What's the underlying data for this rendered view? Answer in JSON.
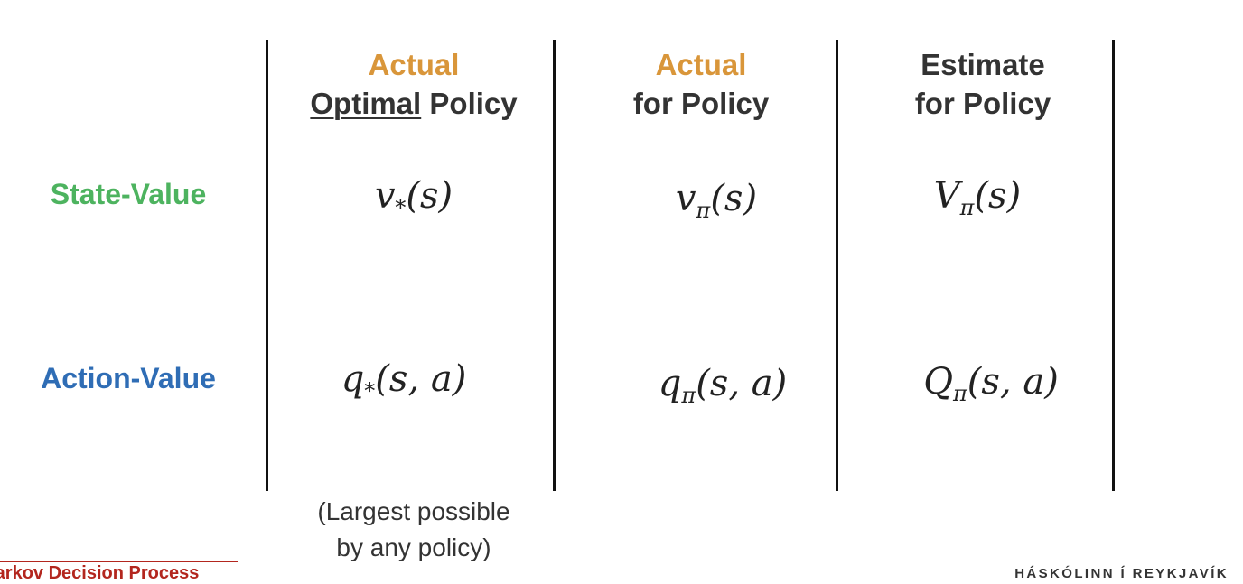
{
  "colors": {
    "accent_orange": "#D9963A",
    "state_green": "#4DB35F",
    "action_blue": "#2F6DB5",
    "footer_red": "#B3261E",
    "text": "#333333"
  },
  "columns": [
    {
      "line1": "Actual",
      "line2_underlined": "Optimal",
      "line2_rest": " Policy"
    },
    {
      "line1": "Actual",
      "line2": "for Policy"
    },
    {
      "line1": "Estimate",
      "line2": "for Policy"
    }
  ],
  "rows": {
    "state_value": "State-Value",
    "action_value": "Action-Value"
  },
  "formulas": {
    "state": [
      {
        "fn": "v",
        "sub": "*",
        "args": "(s)"
      },
      {
        "fn": "v",
        "sub": "π",
        "args": "(s)"
      },
      {
        "fn": "V",
        "sub": "π",
        "args": "(s)"
      }
    ],
    "action": [
      {
        "fn": "q",
        "sub": "*",
        "args": "(s, a)"
      },
      {
        "fn": "q",
        "sub": "π",
        "args": "(s, a)"
      },
      {
        "fn": "Q",
        "sub": "π",
        "args": "(s, a)"
      }
    ]
  },
  "note": {
    "line1": "(Largest possible",
    "line2": "by any policy)"
  },
  "footer": {
    "left": "Markov Decision Process",
    "right": "HÁSKÓLINN Í REYKJAVÍK"
  }
}
